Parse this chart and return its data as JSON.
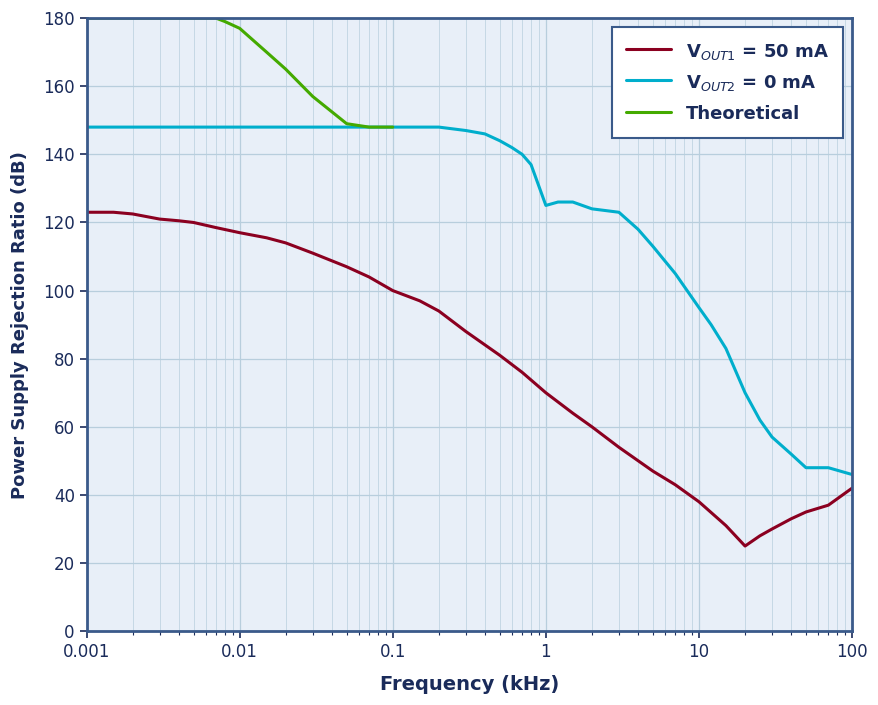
{
  "title": "",
  "xlabel": "Frequency (kHz)",
  "ylabel": "Power Supply Rejection Ratio (dB)",
  "xlim": [
    0.001,
    100
  ],
  "ylim": [
    0,
    180
  ],
  "yticks": [
    0,
    20,
    40,
    60,
    80,
    100,
    120,
    140,
    160,
    180
  ],
  "background_color": "#FFFFFF",
  "plot_bg_color": "#E8EFF8",
  "grid_color": "#B8CEDD",
  "line1_color": "#8B0020",
  "line2_color": "#00AECC",
  "line3_color": "#44AA00",
  "legend_text_color": "#1A2B5A",
  "axis_label_color": "#1A2B5A",
  "tick_color": "#1A2B5A",
  "border_color": "#3A5A8A",
  "line1_label": "V$_{OUT1}$ = 50 mA",
  "line2_label": "V$_{OUT2}$ = 0 mA",
  "line3_label": "Theoretical",
  "vout1_x": [
    0.001,
    0.0015,
    0.002,
    0.003,
    0.004,
    0.005,
    0.007,
    0.01,
    0.015,
    0.02,
    0.03,
    0.05,
    0.07,
    0.1,
    0.15,
    0.2,
    0.3,
    0.5,
    0.7,
    1.0,
    1.5,
    2.0,
    3.0,
    5.0,
    7.0,
    10.0,
    15.0,
    20.0,
    25.0,
    30.0,
    40.0,
    50.0,
    70.0,
    100.0
  ],
  "vout1_y": [
    123,
    123,
    122.5,
    121,
    120.5,
    120,
    118.5,
    117,
    115.5,
    114,
    111,
    107,
    104,
    100,
    97,
    94,
    88,
    81,
    76,
    70,
    64,
    60,
    54,
    47,
    43,
    38,
    31,
    25,
    28,
    30,
    33,
    35,
    37,
    42
  ],
  "vout2_x": [
    0.001,
    0.002,
    0.003,
    0.005,
    0.007,
    0.01,
    0.02,
    0.03,
    0.05,
    0.07,
    0.1,
    0.15,
    0.2,
    0.3,
    0.4,
    0.5,
    0.6,
    0.7,
    0.8,
    1.0,
    1.2,
    1.5,
    2.0,
    3.0,
    4.0,
    5.0,
    7.0,
    10.0,
    12.0,
    15.0,
    20.0,
    25.0,
    30.0,
    40.0,
    50.0,
    70.0,
    100.0
  ],
  "vout2_y": [
    148,
    148,
    148,
    148,
    148,
    148,
    148,
    148,
    148,
    148,
    148,
    148,
    148,
    147,
    146,
    144,
    142,
    140,
    137,
    125,
    126,
    126,
    124,
    123,
    118,
    113,
    105,
    95,
    90,
    83,
    70,
    62,
    57,
    52,
    48,
    48,
    46
  ],
  "theoretical_x": [
    0.001,
    0.002,
    0.003,
    0.005,
    0.007,
    0.008,
    0.01,
    0.015,
    0.02,
    0.03,
    0.05,
    0.07,
    0.09,
    0.1
  ],
  "theoretical_y": [
    180,
    180,
    180,
    180,
    180,
    179,
    177,
    170,
    165,
    157,
    149,
    148,
    148,
    148
  ]
}
